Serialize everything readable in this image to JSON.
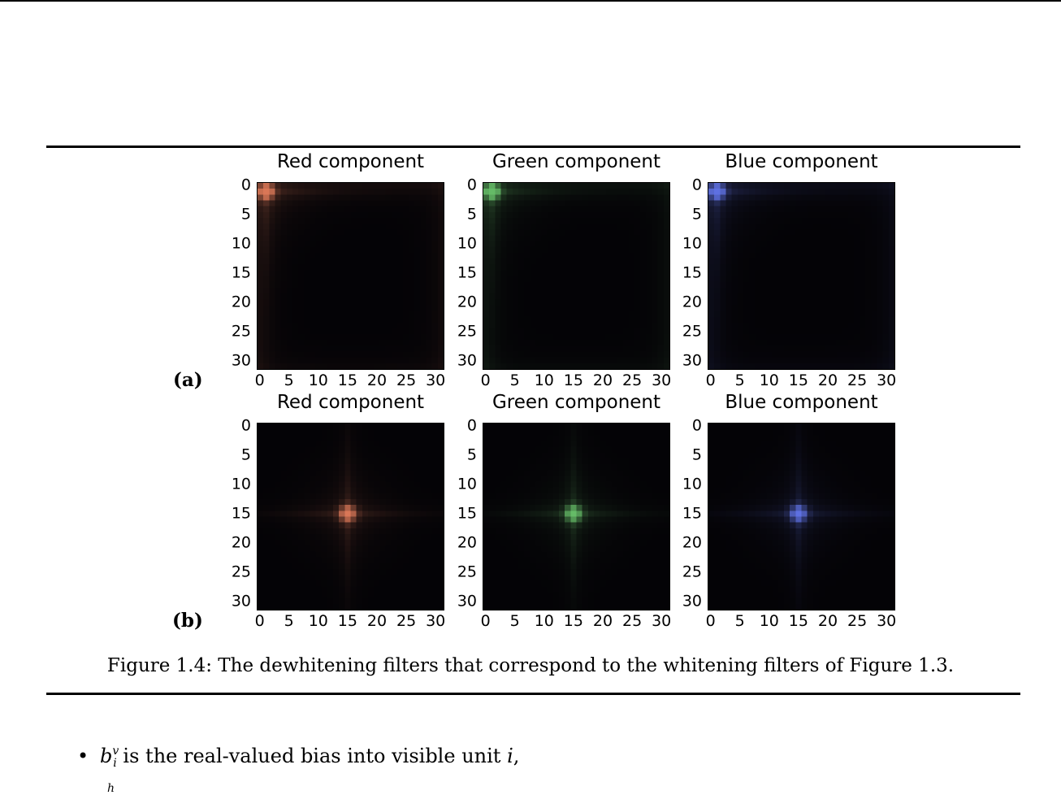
{
  "figure": {
    "caption": "Figure 1.4: The dewhitening filters that correspond to the whitening filters of Figure 1.3.",
    "rows": [
      {
        "label": "(a)",
        "panels": [
          {
            "title": "Red component",
            "color": "#e07a55",
            "peak": [
              1,
              1
            ]
          },
          {
            "title": "Green component",
            "color": "#66c266",
            "peak": [
              1,
              1
            ]
          },
          {
            "title": "Blue component",
            "color": "#5f73e6",
            "peak": [
              1,
              1
            ]
          }
        ]
      },
      {
        "label": "(b)",
        "panels": [
          {
            "title": "Red component",
            "color": "#e07a55",
            "peak": [
              15,
              15
            ]
          },
          {
            "title": "Green component",
            "color": "#66c266",
            "peak": [
              15,
              15
            ]
          },
          {
            "title": "Blue component",
            "color": "#5f73e6",
            "peak": [
              15,
              15
            ]
          }
        ]
      }
    ],
    "y_ticks": [
      "0",
      "5",
      "10",
      "15",
      "20",
      "25",
      "30"
    ],
    "x_ticks": [
      "0",
      "5",
      "10",
      "15",
      "20",
      "25",
      "30"
    ],
    "grid_size": 32
  },
  "text": {
    "bullet_var": "b",
    "bullet_sup": "v",
    "bullet_sub": "i",
    "bullet_rest": "is the real-valued bias into visible unit",
    "bullet_unit": "i",
    "bullet_end": ",",
    "next_bullet_fragment": "h"
  }
}
